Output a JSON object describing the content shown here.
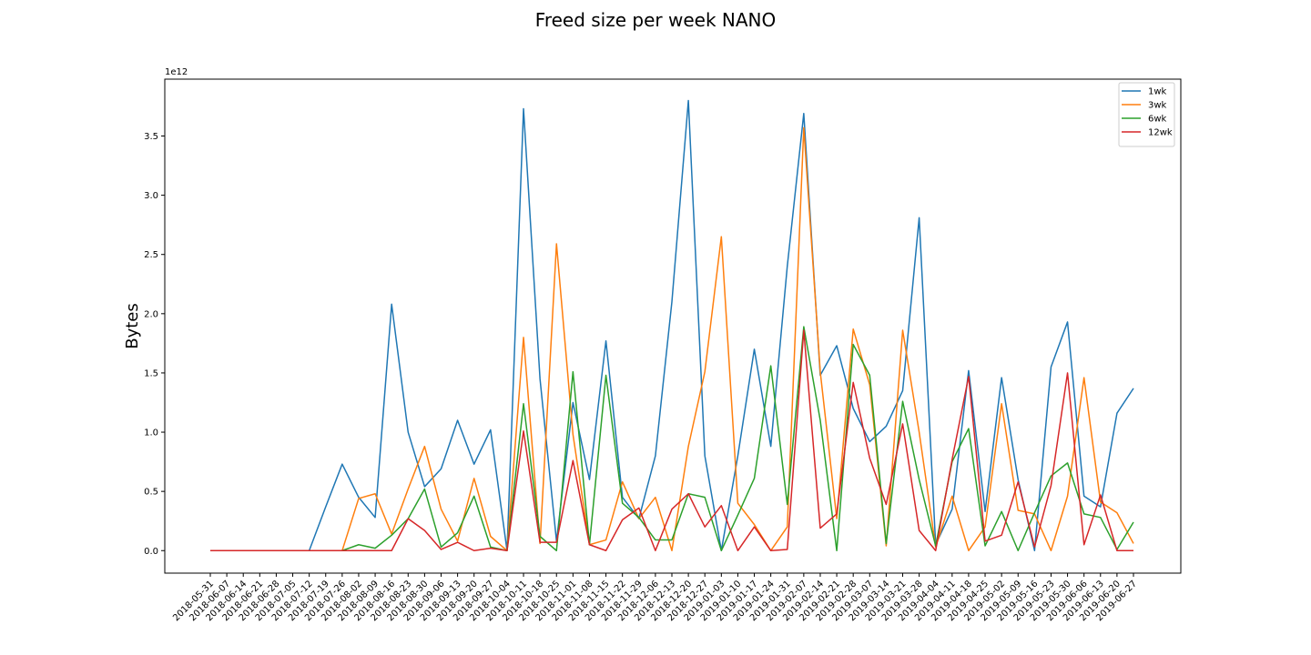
{
  "chart_data": {
    "type": "line",
    "title": "Freed size per week NANO",
    "xlabel": "",
    "ylabel": "Bytes",
    "y_offset_label": "1e12",
    "y_scale": 1000000000000.0,
    "ylim": [
      -0.19,
      3.98
    ],
    "yticks": [
      "0.0",
      "0.5",
      "1.0",
      "1.5",
      "2.0",
      "2.5",
      "3.0",
      "3.5"
    ],
    "ytick_values": [
      0.0,
      0.5,
      1.0,
      1.5,
      2.0,
      2.5,
      3.0,
      3.5
    ],
    "legend_position": "upper right",
    "grid": false,
    "x": [
      "2018-05-31",
      "2018-06-07",
      "2018-06-14",
      "2018-06-21",
      "2018-06-28",
      "2018-07-05",
      "2018-07-12",
      "2018-07-19",
      "2018-07-26",
      "2018-08-02",
      "2018-08-09",
      "2018-08-16",
      "2018-08-23",
      "2018-08-30",
      "2018-09-06",
      "2018-09-13",
      "2018-09-20",
      "2018-09-27",
      "2018-10-04",
      "2018-10-11",
      "2018-10-18",
      "2018-10-25",
      "2018-11-01",
      "2018-11-08",
      "2018-11-15",
      "2018-11-22",
      "2018-11-29",
      "2018-12-06",
      "2018-12-13",
      "2018-12-20",
      "2018-12-27",
      "2019-01-03",
      "2019-01-10",
      "2019-01-17",
      "2019-01-24",
      "2019-01-31",
      "2019-02-07",
      "2019-02-14",
      "2019-02-21",
      "2019-02-28",
      "2019-03-07",
      "2019-03-14",
      "2019-03-21",
      "2019-03-28",
      "2019-04-04",
      "2019-04-11",
      "2019-04-18",
      "2019-04-25",
      "2019-05-02",
      "2019-05-09",
      "2019-05-16",
      "2019-05-23",
      "2019-05-30",
      "2019-06-06",
      "2019-06-13",
      "2019-06-20",
      "2019-06-27"
    ],
    "series": [
      {
        "name": "1wk",
        "color": "#1f77b4",
        "values": [
          0,
          0,
          0,
          0,
          0,
          0,
          0,
          0.37,
          0.73,
          0.45,
          0.28,
          2.08,
          1.0,
          0.54,
          0.69,
          1.1,
          0.73,
          1.02,
          0,
          3.73,
          1.45,
          0.08,
          1.25,
          0.6,
          1.77,
          0.45,
          0.27,
          0.8,
          2.1,
          3.8,
          0.8,
          0,
          0.8,
          1.7,
          0.88,
          2.4,
          3.69,
          1.48,
          1.73,
          1.2,
          0.92,
          1.05,
          1.35,
          2.81,
          0.05,
          0.35,
          1.52,
          0.33,
          1.46,
          0.6,
          0,
          1.55,
          1.93,
          0.46,
          0.37,
          1.16,
          1.37
        ]
      },
      {
        "name": "3wk",
        "color": "#ff7f0e",
        "values": [
          0,
          0,
          0,
          0,
          0,
          0,
          0,
          0,
          0,
          0.44,
          0.48,
          0.14,
          0.52,
          0.88,
          0.35,
          0.08,
          0.61,
          0.12,
          0,
          1.8,
          0.06,
          2.59,
          0.98,
          0.05,
          0.09,
          0.58,
          0.27,
          0.45,
          0,
          0.88,
          1.51,
          2.65,
          0.4,
          0.22,
          0,
          0.2,
          3.57,
          1.51,
          0.27,
          1.87,
          1.4,
          0.04,
          1.86,
          1.0,
          0.03,
          0.46,
          0,
          0.2,
          1.24,
          0.34,
          0.31,
          0,
          0.46,
          1.46,
          0.41,
          0.32,
          0.06
        ]
      },
      {
        "name": "6wk",
        "color": "#2ca02c",
        "values": [
          0,
          0,
          0,
          0,
          0,
          0,
          0,
          0,
          0,
          0.05,
          0.02,
          0.13,
          0.27,
          0.52,
          0.03,
          0.15,
          0.46,
          0.03,
          0,
          1.24,
          0.12,
          0,
          1.51,
          0.05,
          1.48,
          0.4,
          0.28,
          0.09,
          0.09,
          0.48,
          0.45,
          0,
          0.3,
          0.61,
          1.56,
          0.39,
          1.89,
          1.1,
          0,
          1.74,
          1.48,
          0.06,
          1.26,
          0.6,
          0.04,
          0.75,
          1.03,
          0.04,
          0.33,
          0,
          0.32,
          0.63,
          0.74,
          0.31,
          0.28,
          0.01,
          0.24
        ]
      },
      {
        "name": "12wk",
        "color": "#d62728",
        "values": [
          0,
          0,
          0,
          0,
          0,
          0,
          0,
          0,
          0,
          0,
          0,
          0,
          0.27,
          0.17,
          0.01,
          0.07,
          0,
          0.02,
          0,
          1.01,
          0.07,
          0.07,
          0.76,
          0.05,
          0,
          0.26,
          0.36,
          0,
          0.35,
          0.48,
          0.2,
          0.38,
          0,
          0.2,
          0,
          0.01,
          1.86,
          0.19,
          0.31,
          1.42,
          0.78,
          0.39,
          1.07,
          0.17,
          0,
          0.77,
          1.47,
          0.08,
          0.13,
          0.58,
          0.03,
          0.55,
          1.5,
          0.05,
          0.47,
          0,
          0
        ]
      }
    ]
  }
}
